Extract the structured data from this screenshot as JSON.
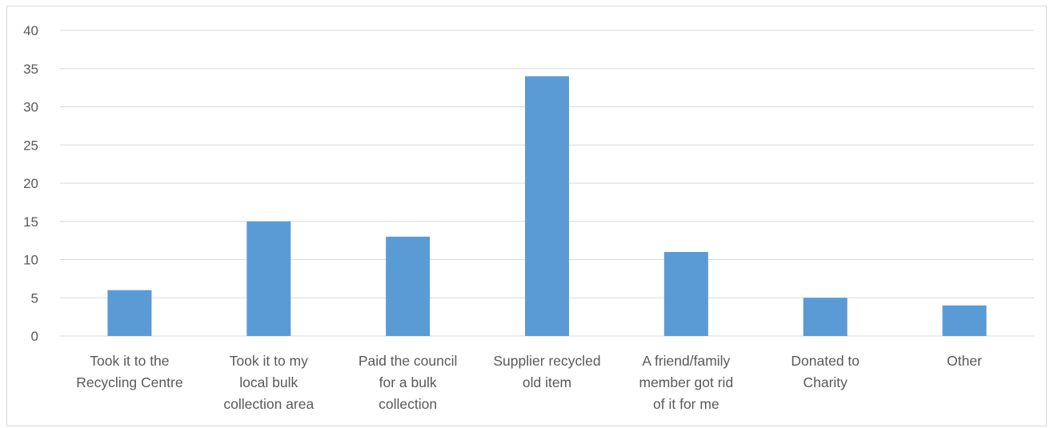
{
  "chart_data": {
    "type": "bar",
    "categories": [
      [
        "Took it to the",
        "Recycling Centre"
      ],
      [
        "Took it to my",
        "local bulk",
        "collection area"
      ],
      [
        "Paid the council",
        "for a bulk",
        "collection"
      ],
      [
        "Supplier recycled",
        "old item"
      ],
      [
        "A friend/family",
        "member got rid",
        "of it for me"
      ],
      [
        "Donated to",
        "Charity"
      ],
      [
        "Other"
      ]
    ],
    "values": [
      6,
      15,
      13,
      34,
      11,
      5,
      4
    ],
    "yticks": [
      "0",
      "5",
      "10",
      "15",
      "20",
      "25",
      "30",
      "35",
      "40"
    ],
    "ylim": [
      0,
      40
    ],
    "grid": true,
    "bar_color": "#5b9bd5",
    "grid_color": "#d9d9d9"
  }
}
